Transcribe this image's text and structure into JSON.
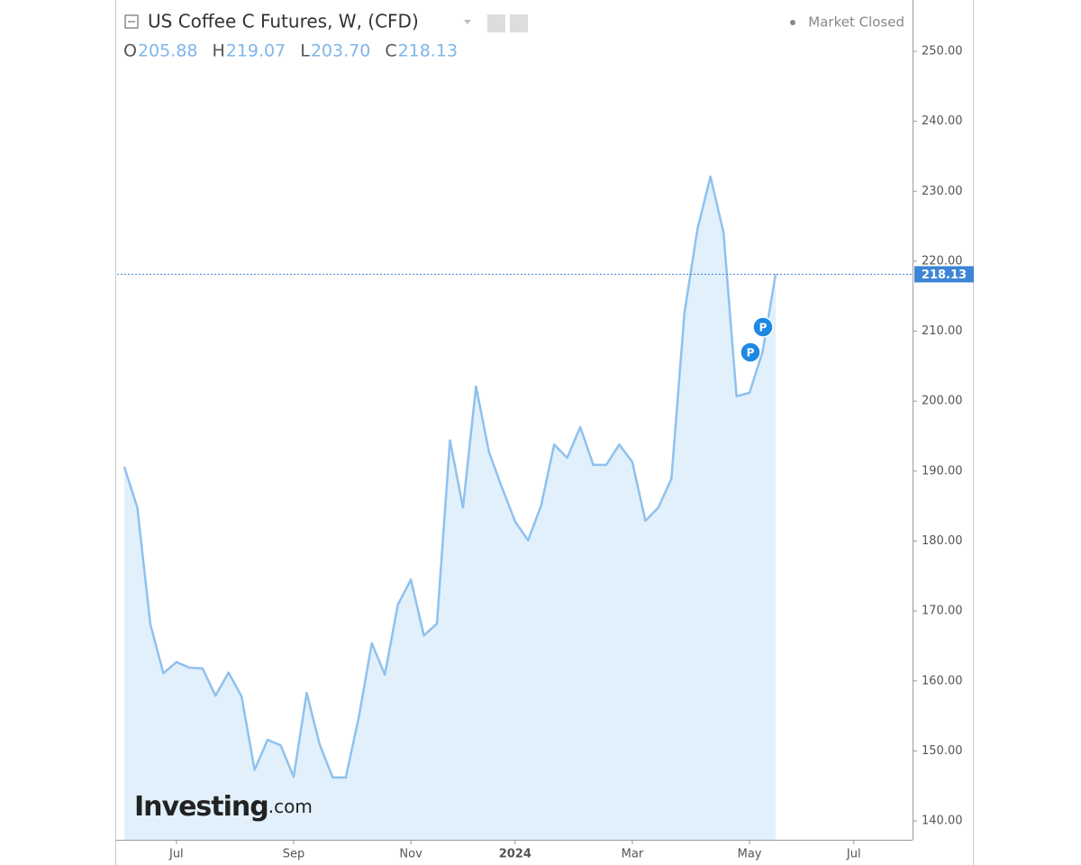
{
  "chart_data": {
    "type": "area",
    "title": "US Coffee C Futures, W, (CFD)",
    "status": "Market Closed",
    "ohlc": [
      {
        "key": "O",
        "value": "205.88"
      },
      {
        "key": "H",
        "value": "219.07"
      },
      {
        "key": "L",
        "value": "203.70"
      },
      {
        "key": "C",
        "value": "218.13"
      }
    ],
    "watermark": [
      "Investing",
      ".com"
    ],
    "events": [
      "P",
      "P"
    ],
    "last_price": 218.13,
    "categories": [
      null,
      null,
      null,
      null,
      "Jul",
      null,
      null,
      null,
      null,
      null,
      null,
      null,
      null,
      "Sep",
      null,
      null,
      null,
      null,
      null,
      null,
      null,
      null,
      "Nov",
      null,
      null,
      null,
      null,
      null,
      null,
      null,
      "2024",
      null,
      null,
      null,
      null,
      null,
      null,
      null,
      null,
      "Mar",
      null,
      null,
      null,
      null,
      null,
      null,
      null,
      null,
      "May",
      null,
      null,
      null,
      null,
      null,
      null,
      null,
      "Jul"
    ],
    "series": [
      {
        "color": "#8fc1ee",
        "fill": "#e1f0fa",
        "values": [
          190.6,
          184.8,
          168.1,
          161.1,
          162.7,
          161.9,
          161.8,
          157.9,
          161.2,
          157.8,
          147.3,
          151.6,
          150.8,
          146.3,
          158.3,
          150.9,
          146.2,
          146.2,
          154.8,
          165.4,
          160.9,
          170.9,
          174.5,
          166.5,
          168.2,
          194.4,
          184.8,
          202.1,
          192.7,
          187.6,
          182.8,
          180.1,
          185.1,
          193.8,
          191.9,
          196.3,
          190.9,
          190.9,
          193.8,
          191.3,
          182.9,
          184.8,
          188.9,
          212.6,
          224.6,
          232.1,
          224.1,
          200.7,
          201.2,
          207.1,
          218.13,
          null,
          null,
          null,
          null,
          null,
          null
        ]
      }
    ],
    "ylim": [
      137.3,
      257.34
    ],
    "yticks": [
      {
        "value": 140,
        "label": "140.00"
      },
      {
        "value": 150,
        "label": "150.00"
      },
      {
        "value": 160,
        "label": "160.00"
      },
      {
        "value": 170,
        "label": "170.00"
      },
      {
        "value": 180,
        "label": "180.00"
      },
      {
        "value": 190,
        "label": "190.00"
      },
      {
        "value": 200,
        "label": "200.00"
      },
      {
        "value": 210,
        "label": "210.00"
      },
      {
        "value": 220,
        "label": "220.00"
      },
      {
        "value": 230,
        "label": "230.00"
      },
      {
        "value": 240,
        "label": "240.00"
      },
      {
        "value": 250,
        "label": "250.00"
      }
    ]
  }
}
